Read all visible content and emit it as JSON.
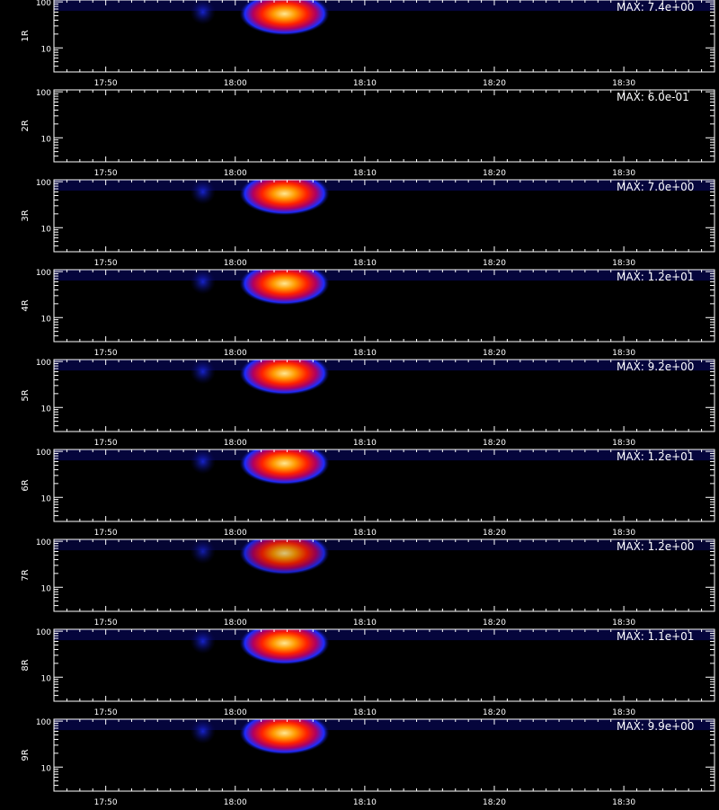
{
  "chart_data": {
    "type": "heatmap",
    "x_range": [
      "17:46",
      "18:37"
    ],
    "x_ticks": [
      "17:50",
      "18:00",
      "18:10",
      "18:20",
      "18:30"
    ],
    "y_scale": "log",
    "y_range": [
      3,
      110
    ],
    "y_ticks": [
      "10",
      "100"
    ],
    "grid": false,
    "colormap": [
      "#000000",
      "#0a0a6e",
      "#1c2cff",
      "#b00060",
      "#ff2000",
      "#ff9a00",
      "#ffe890"
    ],
    "panels": [
      {
        "label": "1R",
        "max_label": "MAX: 7.4e+00",
        "intensity": 1.0
      },
      {
        "label": "2R",
        "max_label": "MAX: 6.0e-01",
        "intensity": 0.0
      },
      {
        "label": "3R",
        "max_label": "MAX: 7.0e+00",
        "intensity": 1.0
      },
      {
        "label": "4R",
        "max_label": "MAX: 1.2e+01",
        "intensity": 1.0
      },
      {
        "label": "5R",
        "max_label": "MAX: 9.2e+00",
        "intensity": 1.0
      },
      {
        "label": "6R",
        "max_label": "MAX: 1.2e+01",
        "intensity": 1.0
      },
      {
        "label": "7R",
        "max_label": "MAX: 1.2e+00",
        "intensity": 0.85
      },
      {
        "label": "8R",
        "max_label": "MAX: 1.1e+01",
        "intensity": 1.0
      },
      {
        "label": "9R",
        "max_label": "MAX: 9.9e+00",
        "intensity": 1.0
      }
    ]
  }
}
